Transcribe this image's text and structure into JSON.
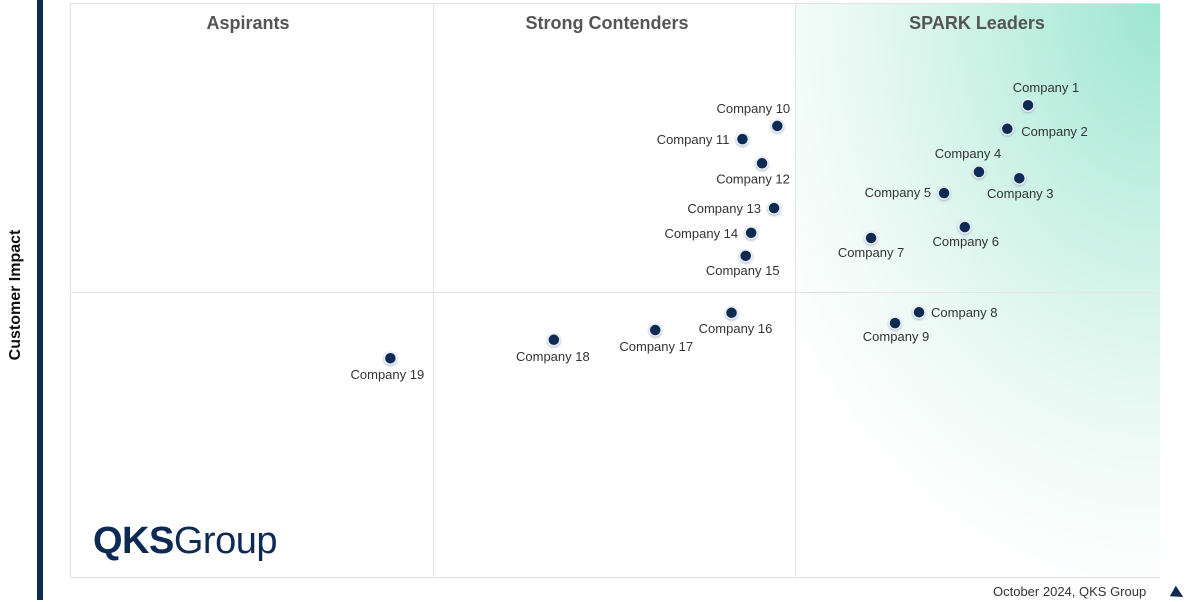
{
  "chart_data": {
    "type": "scatter",
    "title": "",
    "ylabel": "Customer Impact",
    "xlabel": "",
    "xlim": [
      0,
      100
    ],
    "ylim": [
      0,
      100
    ],
    "grid": false,
    "quadrants": [
      "Aspirants",
      "Strong Contenders",
      "SPARK Leaders"
    ],
    "leader_gradient_color": "#9de6d0",
    "point_color": "#0d2a52",
    "points": [
      {
        "name": "Company 1",
        "x": 87.8,
        "y": 82.4
      },
      {
        "name": "Company 2",
        "x": 85.9,
        "y": 78.3
      },
      {
        "name": "Company 3",
        "x": 87.0,
        "y": 69.7
      },
      {
        "name": "Company 4",
        "x": 83.3,
        "y": 70.8
      },
      {
        "name": "Company 5",
        "x": 80.1,
        "y": 67.1
      },
      {
        "name": "Company 6",
        "x": 82.0,
        "y": 61.2
      },
      {
        "name": "Company 7",
        "x": 73.4,
        "y": 59.3
      },
      {
        "name": "Company 8",
        "x": 77.8,
        "y": 46.4
      },
      {
        "name": "Company 9",
        "x": 75.6,
        "y": 44.5
      },
      {
        "name": "Company 10",
        "x": 64.8,
        "y": 78.8
      },
      {
        "name": "Company 11",
        "x": 61.6,
        "y": 76.5
      },
      {
        "name": "Company 12",
        "x": 63.4,
        "y": 72.3
      },
      {
        "name": "Company 13",
        "x": 64.5,
        "y": 64.5
      },
      {
        "name": "Company 14",
        "x": 62.4,
        "y": 60.2
      },
      {
        "name": "Company 15",
        "x": 61.9,
        "y": 56.2
      },
      {
        "name": "Company 16",
        "x": 60.6,
        "y": 46.3
      },
      {
        "name": "Company 17",
        "x": 53.6,
        "y": 43.3
      },
      {
        "name": "Company 18",
        "x": 44.3,
        "y": 41.6
      },
      {
        "name": "Company 19",
        "x": 29.3,
        "y": 38.4
      }
    ]
  },
  "logo": {
    "bold": "QKS",
    "light": "Group"
  },
  "footer": "October 2024, QKS Group"
}
